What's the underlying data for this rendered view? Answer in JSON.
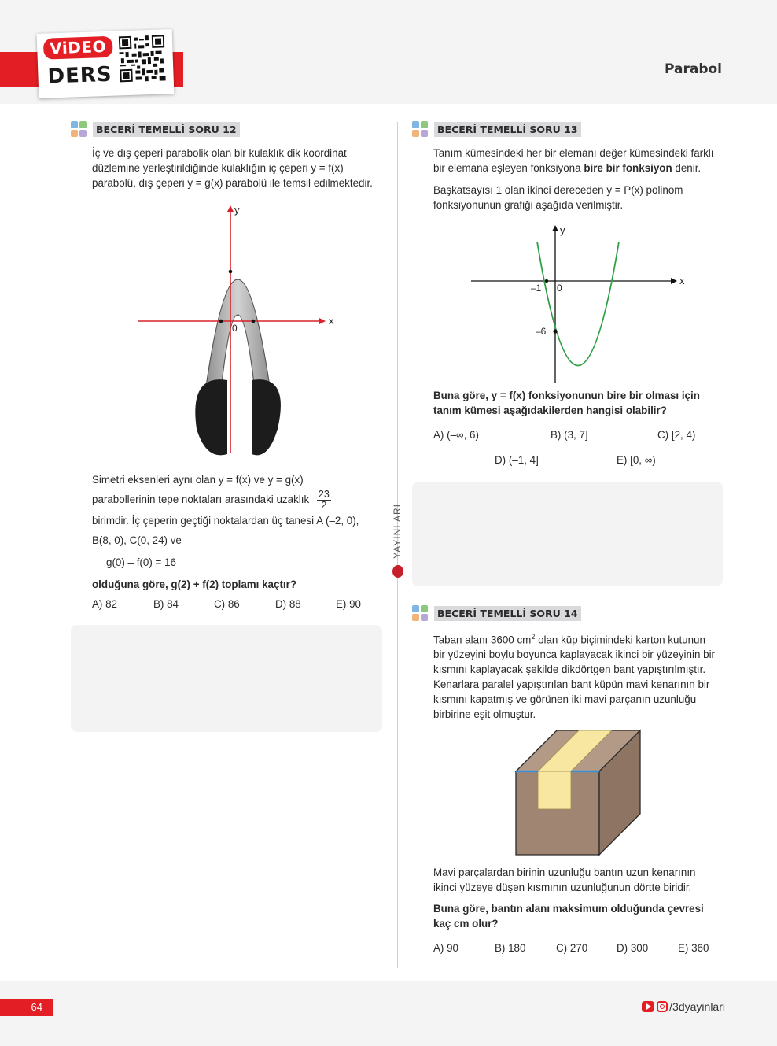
{
  "header": {
    "video_label": "ViDEO",
    "ders_label": "DERS",
    "chapter": "Parabol"
  },
  "side_brand": "YAYINLARI",
  "q12": {
    "title": "BECERİ TEMELLİ SORU 12",
    "intro": [
      "İç ve dış çeperi parabolik olan bir kulaklık dik koordinat",
      "düzlemine yerleştirildiğinde kulaklığın iç çeperi y = f(x)",
      "parabolü, dış çeperi y = g(x) parabolü ile temsil edilmektedir."
    ],
    "graph": {
      "x_label": "x",
      "y_label": "y",
      "origin_label": "0"
    },
    "body1": "Simetri eksenleri aynı olan y = f(x) ve y = g(x)",
    "body2": "parabollerinin tepe noktaları arasındaki uzaklık",
    "frac_num": "23",
    "frac_den": "2",
    "body3": "birimdir. İç çeperin geçtiği noktalardan üç tanesi A (–2, 0),",
    "body4": "B(8, 0), C(0, 24) ve",
    "equation": "g(0) – f(0) = 16",
    "question": "olduğuna göre, g(2) + f(2) toplamı kaçtır?",
    "options": [
      "A) 82",
      "B) 84",
      "C) 86",
      "D) 88",
      "E) 90"
    ]
  },
  "q13": {
    "title": "BECERİ TEMELLİ SORU 13",
    "p1a": "Tanım kümesindeki her bir elemanı değer kümesindeki farklı",
    "p1b_pre": "bir elemana eşleyen fonksiyona ",
    "p1b_bold": "bire bir fonksiyon",
    "p1b_post": " denir.",
    "p2": [
      "Başkatsayısı 1 olan ikinci dereceden y = P(x) polinom",
      "fonksiyonunun grafiği aşağıda verilmiştir."
    ],
    "graph": {
      "x_label": "x",
      "y_label": "y",
      "label_minus1": "–1",
      "label_zero": "0",
      "label_minus6": "–6"
    },
    "question": [
      "Buna göre, y = f(x) fonksiyonunun bire bir olması için",
      "tanım kümesi aşağıdakilerden hangisi olabilir?"
    ],
    "options": [
      "A) (–∞, 6)",
      "B) (3, 7]",
      "C) [2, 4)",
      "D) (–1, 4]",
      "E) [0, ∞)"
    ]
  },
  "q14": {
    "title": "BECERİ TEMELLİ SORU 14",
    "p1_pre": "Taban alanı 3600 cm",
    "p1_sup": "2",
    "p1_post": " olan küp biçimindeki karton kutunun",
    "p1_rest": [
      "bir yüzeyini boylu boyunca kaplayacak ikinci bir yüzeyinin bir",
      "kısmını kaplayacak şekilde dikdörtgen bant yapıştırılmıştır.",
      "Kenarlara paralel yapıştırılan bant küpün mavi kenarının bir",
      "kısmını kapatmış ve görünen iki mavi parçanın uzunluğu",
      "birbirine eşit olmuştur."
    ],
    "p2": [
      "Mavi parçalardan birinin uzunluğu bantın uzun kenarının",
      "ikinci yüzeye düşen kısmının uzunluğunun dörtte biridir."
    ],
    "question": [
      "Buna göre, bantın alanı maksimum olduğunda çevresi",
      "kaç cm olur?"
    ],
    "options": [
      "A) 90",
      "B) 180",
      "C) 270",
      "D) 300",
      "E) 360"
    ]
  },
  "footer": {
    "page_number": "64",
    "social_handle": "/3dyayinlari"
  },
  "colors": {
    "brand_red": "#e31e24",
    "parabola_green": "#2ea043",
    "axis_red": "#d8232a",
    "edge_blue": "#3a8fd6",
    "box_brown": "#a08672",
    "tape_yellow": "#f7e7a0"
  }
}
